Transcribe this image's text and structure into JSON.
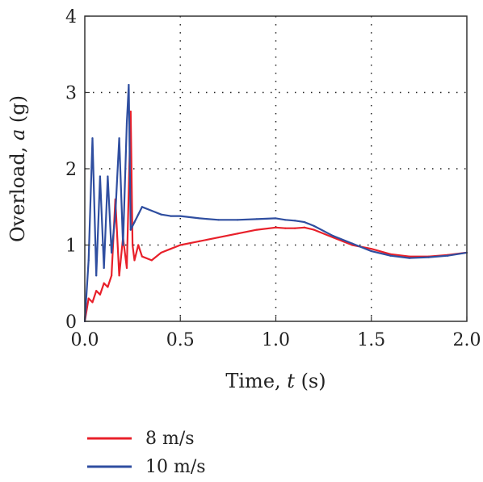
{
  "chart_data": {
    "type": "line",
    "title": "",
    "xlabel_prefix": "Time, ",
    "xlabel_var": "t",
    "xlabel_suffix": " (s)",
    "ylabel_prefix": "Overload, ",
    "ylabel_var": "a",
    "ylabel_suffix": " (g)",
    "xlim": [
      0,
      2
    ],
    "ylim": [
      0,
      4
    ],
    "x_ticks": [
      "0.0",
      "0.5",
      "1.0",
      "1.5",
      "2.0"
    ],
    "y_ticks": [
      "0",
      "1",
      "2",
      "3",
      "4"
    ],
    "grid": "dotted",
    "legend_position": "bottom-left",
    "series": [
      {
        "name": "8 m/s",
        "color": "#e8202a",
        "x": [
          0.0,
          0.02,
          0.04,
          0.06,
          0.08,
          0.1,
          0.12,
          0.14,
          0.16,
          0.18,
          0.2,
          0.22,
          0.24,
          0.25,
          0.26,
          0.28,
          0.3,
          0.35,
          0.4,
          0.45,
          0.5,
          0.6,
          0.7,
          0.8,
          0.9,
          1.0,
          1.05,
          1.1,
          1.15,
          1.2,
          1.3,
          1.4,
          1.5,
          1.6,
          1.7,
          1.8,
          1.9,
          2.0
        ],
        "y": [
          0.0,
          0.3,
          0.25,
          0.4,
          0.35,
          0.5,
          0.45,
          0.6,
          1.6,
          0.6,
          1.1,
          0.7,
          2.75,
          1.0,
          0.8,
          1.0,
          0.85,
          0.8,
          0.9,
          0.95,
          1.0,
          1.05,
          1.1,
          1.15,
          1.2,
          1.23,
          1.22,
          1.22,
          1.23,
          1.2,
          1.1,
          1.0,
          0.95,
          0.88,
          0.85,
          0.85,
          0.87,
          0.9
        ]
      },
      {
        "name": "10 m/s",
        "color": "#2f4ea0",
        "x": [
          0.0,
          0.02,
          0.04,
          0.06,
          0.08,
          0.1,
          0.12,
          0.14,
          0.16,
          0.18,
          0.2,
          0.22,
          0.23,
          0.24,
          0.26,
          0.28,
          0.3,
          0.35,
          0.4,
          0.45,
          0.5,
          0.6,
          0.7,
          0.8,
          0.9,
          1.0,
          1.05,
          1.1,
          1.15,
          1.2,
          1.3,
          1.4,
          1.5,
          1.6,
          1.7,
          1.8,
          1.9,
          2.0
        ],
        "y": [
          0.0,
          0.8,
          2.4,
          0.6,
          1.9,
          0.7,
          1.9,
          0.9,
          1.4,
          2.4,
          1.0,
          2.6,
          3.1,
          1.2,
          1.3,
          1.4,
          1.5,
          1.45,
          1.4,
          1.38,
          1.38,
          1.35,
          1.33,
          1.33,
          1.34,
          1.35,
          1.33,
          1.32,
          1.3,
          1.25,
          1.12,
          1.02,
          0.92,
          0.86,
          0.83,
          0.84,
          0.86,
          0.9
        ]
      }
    ]
  }
}
